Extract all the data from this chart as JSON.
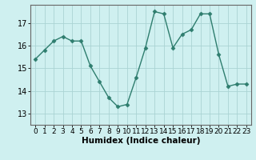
{
  "x": [
    0,
    1,
    2,
    3,
    4,
    5,
    6,
    7,
    8,
    9,
    10,
    11,
    12,
    13,
    14,
    15,
    16,
    17,
    18,
    19,
    20,
    21,
    22,
    23
  ],
  "y": [
    15.4,
    15.8,
    16.2,
    16.4,
    16.2,
    16.2,
    15.1,
    14.4,
    13.7,
    13.3,
    13.4,
    14.6,
    15.9,
    17.5,
    17.4,
    15.9,
    16.5,
    16.7,
    17.4,
    17.4,
    15.6,
    14.2,
    14.3,
    14.3
  ],
  "xlabel": "Humidex (Indice chaleur)",
  "ylim": [
    12.5,
    17.8
  ],
  "xlim": [
    -0.5,
    23.5
  ],
  "yticks": [
    13,
    14,
    15,
    16,
    17
  ],
  "xticks": [
    0,
    1,
    2,
    3,
    4,
    5,
    6,
    7,
    8,
    9,
    10,
    11,
    12,
    13,
    14,
    15,
    16,
    17,
    18,
    19,
    20,
    21,
    22,
    23
  ],
  "line_color": "#2e7d6e",
  "marker": "D",
  "marker_size": 2.5,
  "bg_color": "#cff0f0",
  "grid_color": "#aad4d4",
  "spine_color": "#666666",
  "xlabel_fontsize": 7.5,
  "tick_fontsize": 6.5,
  "ytick_fontsize": 7
}
